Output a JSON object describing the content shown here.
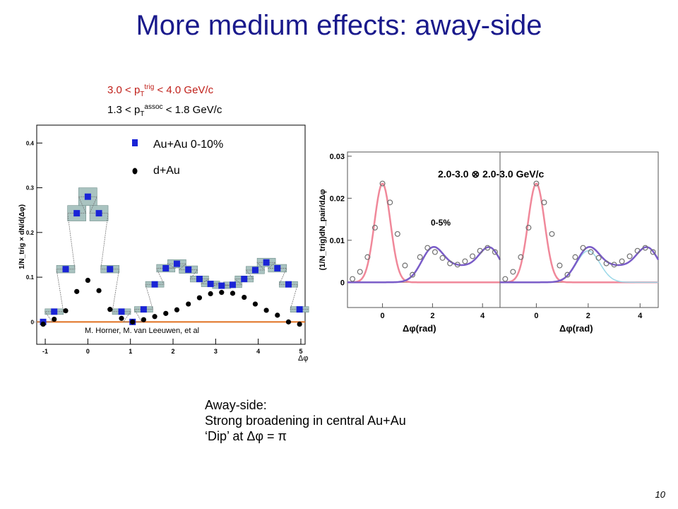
{
  "slide": {
    "title": "More medium effects: away-side",
    "page_number": "10",
    "ptcut_trig": {
      "pre": "3.0 < p",
      "sub": "T",
      "sup": "trig",
      "post": " < 4.0 GeV/c"
    },
    "ptcut_assoc": {
      "pre": "1.3 < p",
      "sub": "T",
      "sup": "assoc",
      "post": " < 1.8 GeV/c"
    },
    "away_side_lines": [
      "Away-side:",
      "Strong broadening in central Au+Au",
      "‘Dip’ at Δφ = π"
    ]
  },
  "chart_data": [
    {
      "type": "scatter",
      "title": "",
      "xlabel": "Δφ",
      "ylabel": "1/N_trig × dN/d(Δφ)",
      "xlim": [
        -1.2,
        5.1
      ],
      "ylim": [
        -0.05,
        0.44
      ],
      "xticks": [
        "-1",
        "0",
        "1",
        "2",
        "3",
        "4",
        "5"
      ],
      "yticks": [
        "0",
        "0.1",
        "0.2",
        "0.3",
        "0.4"
      ],
      "grid": false,
      "legend_position": "top-left",
      "credit": "M. Horner,  M. van Leeuwen,  et al",
      "colors": {
        "auau": "#1a24d6",
        "dau": "#000000",
        "band": "#a9c3c0",
        "baseline": "#e07020"
      },
      "series": [
        {
          "name": "Au+Au 0-10%",
          "marker": "square",
          "x": [
            -1.05,
            -0.79,
            -0.52,
            -0.26,
            0.0,
            0.26,
            0.52,
            0.79,
            1.05,
            1.31,
            1.57,
            1.83,
            2.09,
            2.36,
            2.62,
            2.88,
            3.14,
            3.4,
            3.67,
            3.93,
            4.19,
            4.45,
            4.71,
            4.97
          ],
          "y": [
            0.0,
            0.023,
            0.118,
            0.243,
            0.28,
            0.243,
            0.118,
            0.023,
            0.0,
            0.028,
            0.084,
            0.12,
            0.13,
            0.117,
            0.096,
            0.085,
            0.081,
            0.083,
            0.096,
            0.116,
            0.133,
            0.12,
            0.084,
            0.028
          ]
        },
        {
          "name": "d+Au",
          "marker": "circle",
          "x": [
            -1.05,
            -0.79,
            -0.52,
            -0.26,
            0.0,
            0.26,
            0.52,
            0.79,
            1.05,
            1.31,
            1.57,
            1.83,
            2.09,
            2.36,
            2.62,
            2.88,
            3.14,
            3.4,
            3.67,
            3.93,
            4.19,
            4.45,
            4.71,
            4.97
          ],
          "y": [
            -0.005,
            0.006,
            0.025,
            0.068,
            0.093,
            0.07,
            0.028,
            0.008,
            0.0,
            0.005,
            0.012,
            0.019,
            0.027,
            0.04,
            0.054,
            0.063,
            0.066,
            0.064,
            0.055,
            0.04,
            0.026,
            0.015,
            0.0,
            -0.005
          ]
        }
      ]
    },
    {
      "type": "scatter",
      "title": "2.0-3.0 ⊗ 2.0-3.0 GeV/c",
      "centrality_label": "0-5%",
      "xlabel": "Δφ(rad)",
      "ylabel": "(1/N_trig)dN_pair/dΔφ",
      "xlim": [
        -1.4,
        4.7
      ],
      "ylim": [
        -0.006,
        0.031
      ],
      "xticks": [
        "0",
        "2",
        "4"
      ],
      "yticks": [
        "0",
        "0.01",
        "0.02",
        "0.03"
      ],
      "colors": {
        "near_fit": "#f0889a",
        "away_fit": "#7a5cc8",
        "component": "#9ad8e8",
        "points": "#707070"
      },
      "panels": [
        {
          "name": "left",
          "series_points": {
            "x": [
              -1.2,
              -0.9,
              -0.6,
              -0.3,
              0.0,
              0.3,
              0.6,
              0.9,
              1.2,
              1.5,
              1.8,
              2.1,
              2.4,
              2.7,
              3.0,
              3.3,
              3.6,
              3.9,
              4.2,
              4.5
            ],
            "y": [
              0.0008,
              0.0025,
              0.006,
              0.013,
              0.0235,
              0.019,
              0.0115,
              0.004,
              0.0018,
              0.006,
              0.0082,
              0.0072,
              0.0058,
              0.0045,
              0.0042,
              0.005,
              0.0062,
              0.0075,
              0.0082,
              0.0072
            ]
          }
        },
        {
          "name": "right",
          "series_points": {
            "x": [
              -1.2,
              -0.9,
              -0.6,
              -0.3,
              0.0,
              0.3,
              0.6,
              0.9,
              1.2,
              1.5,
              1.8,
              2.1,
              2.4,
              2.7,
              3.0,
              3.3,
              3.6,
              3.9,
              4.2,
              4.5
            ],
            "y": [
              0.0008,
              0.0025,
              0.006,
              0.013,
              0.0235,
              0.019,
              0.0115,
              0.004,
              0.0018,
              0.006,
              0.0082,
              0.0072,
              0.0058,
              0.0045,
              0.0042,
              0.005,
              0.0062,
              0.0075,
              0.0082,
              0.0072
            ]
          }
        }
      ]
    }
  ]
}
